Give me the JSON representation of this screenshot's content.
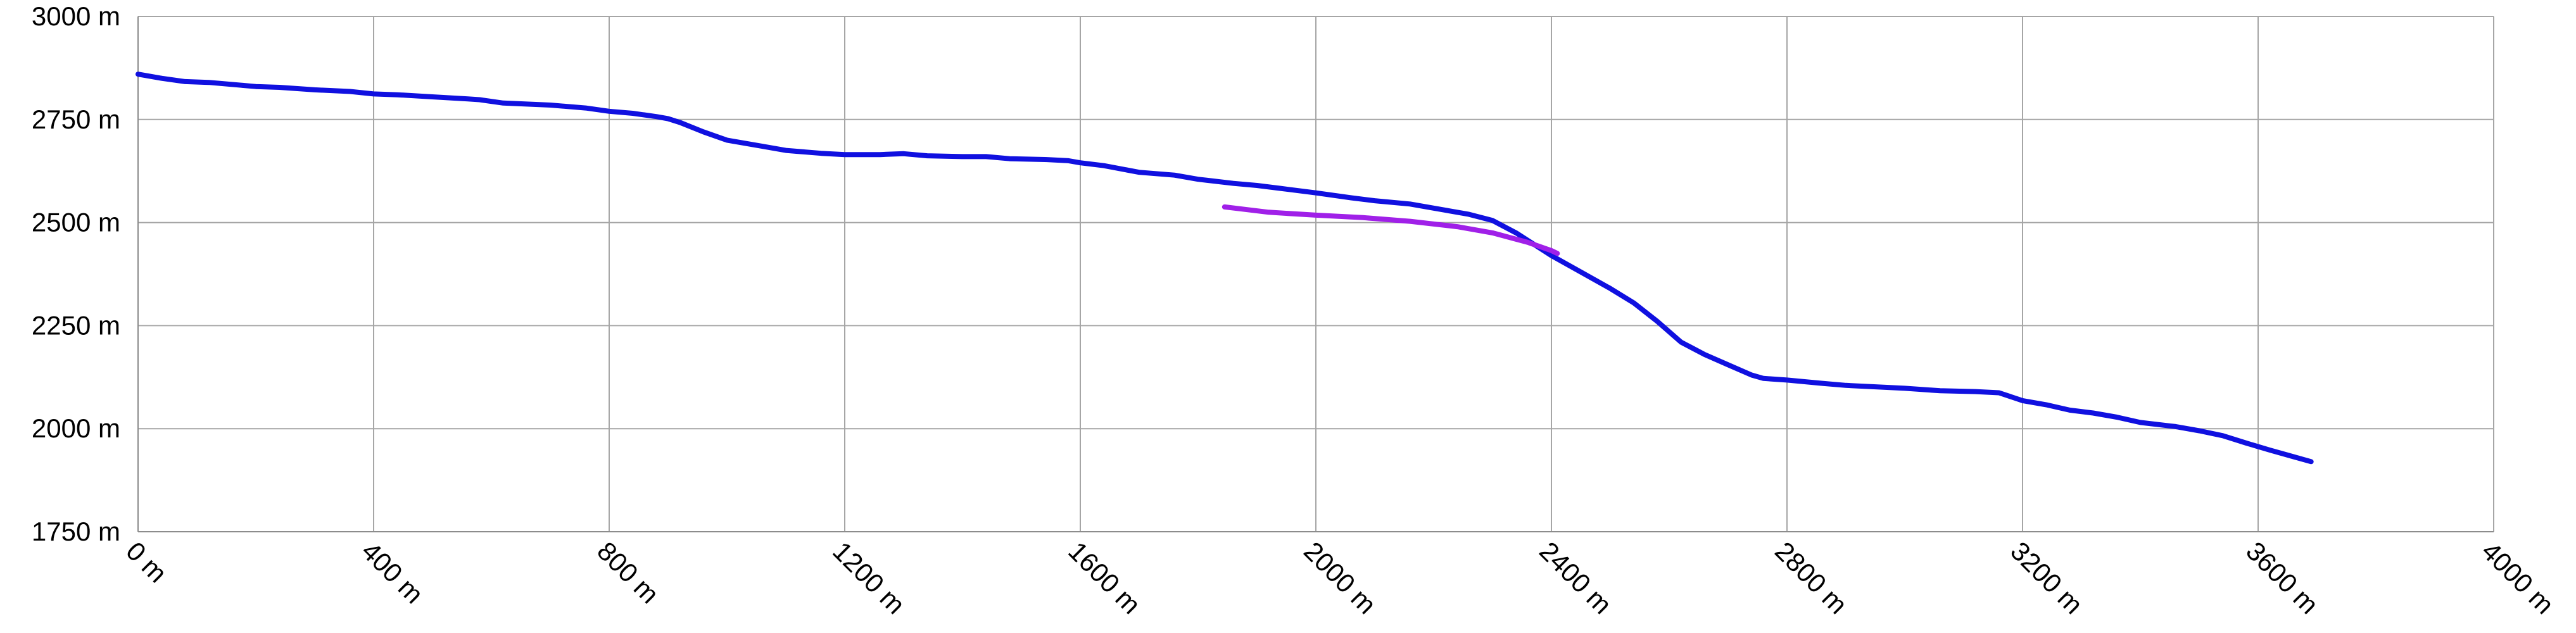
{
  "chart_data": {
    "type": "line",
    "title": "",
    "xlabel": "",
    "ylabel": "",
    "xlim": [
      0,
      4000
    ],
    "ylim": [
      1750,
      3000
    ],
    "grid": true,
    "legend": "none",
    "x_ticks": [
      {
        "value": 0,
        "label": "0 m"
      },
      {
        "value": 400,
        "label": "400 m"
      },
      {
        "value": 800,
        "label": "800 m"
      },
      {
        "value": 1200,
        "label": "1200 m"
      },
      {
        "value": 1600,
        "label": "1600 m"
      },
      {
        "value": 2000,
        "label": "2000 m"
      },
      {
        "value": 2400,
        "label": "2400 m"
      },
      {
        "value": 2800,
        "label": "2800 m"
      },
      {
        "value": 3200,
        "label": "3200 m"
      },
      {
        "value": 3600,
        "label": "3600 m"
      },
      {
        "value": 4000,
        "label": "4000 m"
      }
    ],
    "y_ticks": [
      {
        "value": 3000,
        "label": "3000 m"
      },
      {
        "value": 2750,
        "label": "2750 m"
      },
      {
        "value": 2500,
        "label": "2500 m"
      },
      {
        "value": 2250,
        "label": "2250 m"
      },
      {
        "value": 2000,
        "label": "2000 m"
      },
      {
        "value": 1750,
        "label": "1750 m"
      }
    ],
    "series": [
      {
        "color": "#1010e0",
        "points": [
          [
            0,
            2860
          ],
          [
            40,
            2850
          ],
          [
            80,
            2842
          ],
          [
            120,
            2840
          ],
          [
            200,
            2830
          ],
          [
            240,
            2828
          ],
          [
            300,
            2822
          ],
          [
            360,
            2818
          ],
          [
            400,
            2812
          ],
          [
            440,
            2810
          ],
          [
            500,
            2805
          ],
          [
            560,
            2800
          ],
          [
            580,
            2798
          ],
          [
            620,
            2790
          ],
          [
            700,
            2785
          ],
          [
            760,
            2778
          ],
          [
            800,
            2770
          ],
          [
            840,
            2765
          ],
          [
            880,
            2757
          ],
          [
            900,
            2752
          ],
          [
            920,
            2743
          ],
          [
            960,
            2720
          ],
          [
            1000,
            2700
          ],
          [
            1060,
            2685
          ],
          [
            1100,
            2675
          ],
          [
            1160,
            2668
          ],
          [
            1200,
            2665
          ],
          [
            1260,
            2665
          ],
          [
            1300,
            2667
          ],
          [
            1340,
            2662
          ],
          [
            1400,
            2660
          ],
          [
            1440,
            2660
          ],
          [
            1480,
            2655
          ],
          [
            1540,
            2653
          ],
          [
            1580,
            2650
          ],
          [
            1600,
            2645
          ],
          [
            1640,
            2638
          ],
          [
            1700,
            2622
          ],
          [
            1760,
            2615
          ],
          [
            1800,
            2605
          ],
          [
            1860,
            2595
          ],
          [
            1900,
            2590
          ],
          [
            1940,
            2583
          ],
          [
            2000,
            2572
          ],
          [
            2060,
            2560
          ],
          [
            2100,
            2553
          ],
          [
            2160,
            2545
          ],
          [
            2200,
            2535
          ],
          [
            2260,
            2520
          ],
          [
            2300,
            2505
          ],
          [
            2340,
            2475
          ],
          [
            2400,
            2420
          ],
          [
            2450,
            2380
          ],
          [
            2500,
            2340
          ],
          [
            2540,
            2305
          ],
          [
            2580,
            2260
          ],
          [
            2620,
            2210
          ],
          [
            2660,
            2180
          ],
          [
            2700,
            2155
          ],
          [
            2740,
            2130
          ],
          [
            2760,
            2122
          ],
          [
            2800,
            2118
          ],
          [
            2860,
            2110
          ],
          [
            2900,
            2105
          ],
          [
            3000,
            2098
          ],
          [
            3060,
            2092
          ],
          [
            3120,
            2090
          ],
          [
            3160,
            2087
          ],
          [
            3200,
            2068
          ],
          [
            3240,
            2058
          ],
          [
            3280,
            2045
          ],
          [
            3320,
            2038
          ],
          [
            3360,
            2028
          ],
          [
            3400,
            2015
          ],
          [
            3460,
            2005
          ],
          [
            3500,
            1995
          ],
          [
            3540,
            1983
          ],
          [
            3580,
            1965
          ],
          [
            3620,
            1948
          ],
          [
            3660,
            1932
          ],
          [
            3690,
            1920
          ]
        ]
      },
      {
        "color": "#a020e8",
        "points": [
          [
            1845,
            2538
          ],
          [
            1880,
            2532
          ],
          [
            1920,
            2525
          ],
          [
            2000,
            2518
          ],
          [
            2080,
            2512
          ],
          [
            2160,
            2503
          ],
          [
            2240,
            2490
          ],
          [
            2300,
            2475
          ],
          [
            2360,
            2452
          ],
          [
            2400,
            2432
          ],
          [
            2410,
            2425
          ]
        ]
      }
    ]
  }
}
